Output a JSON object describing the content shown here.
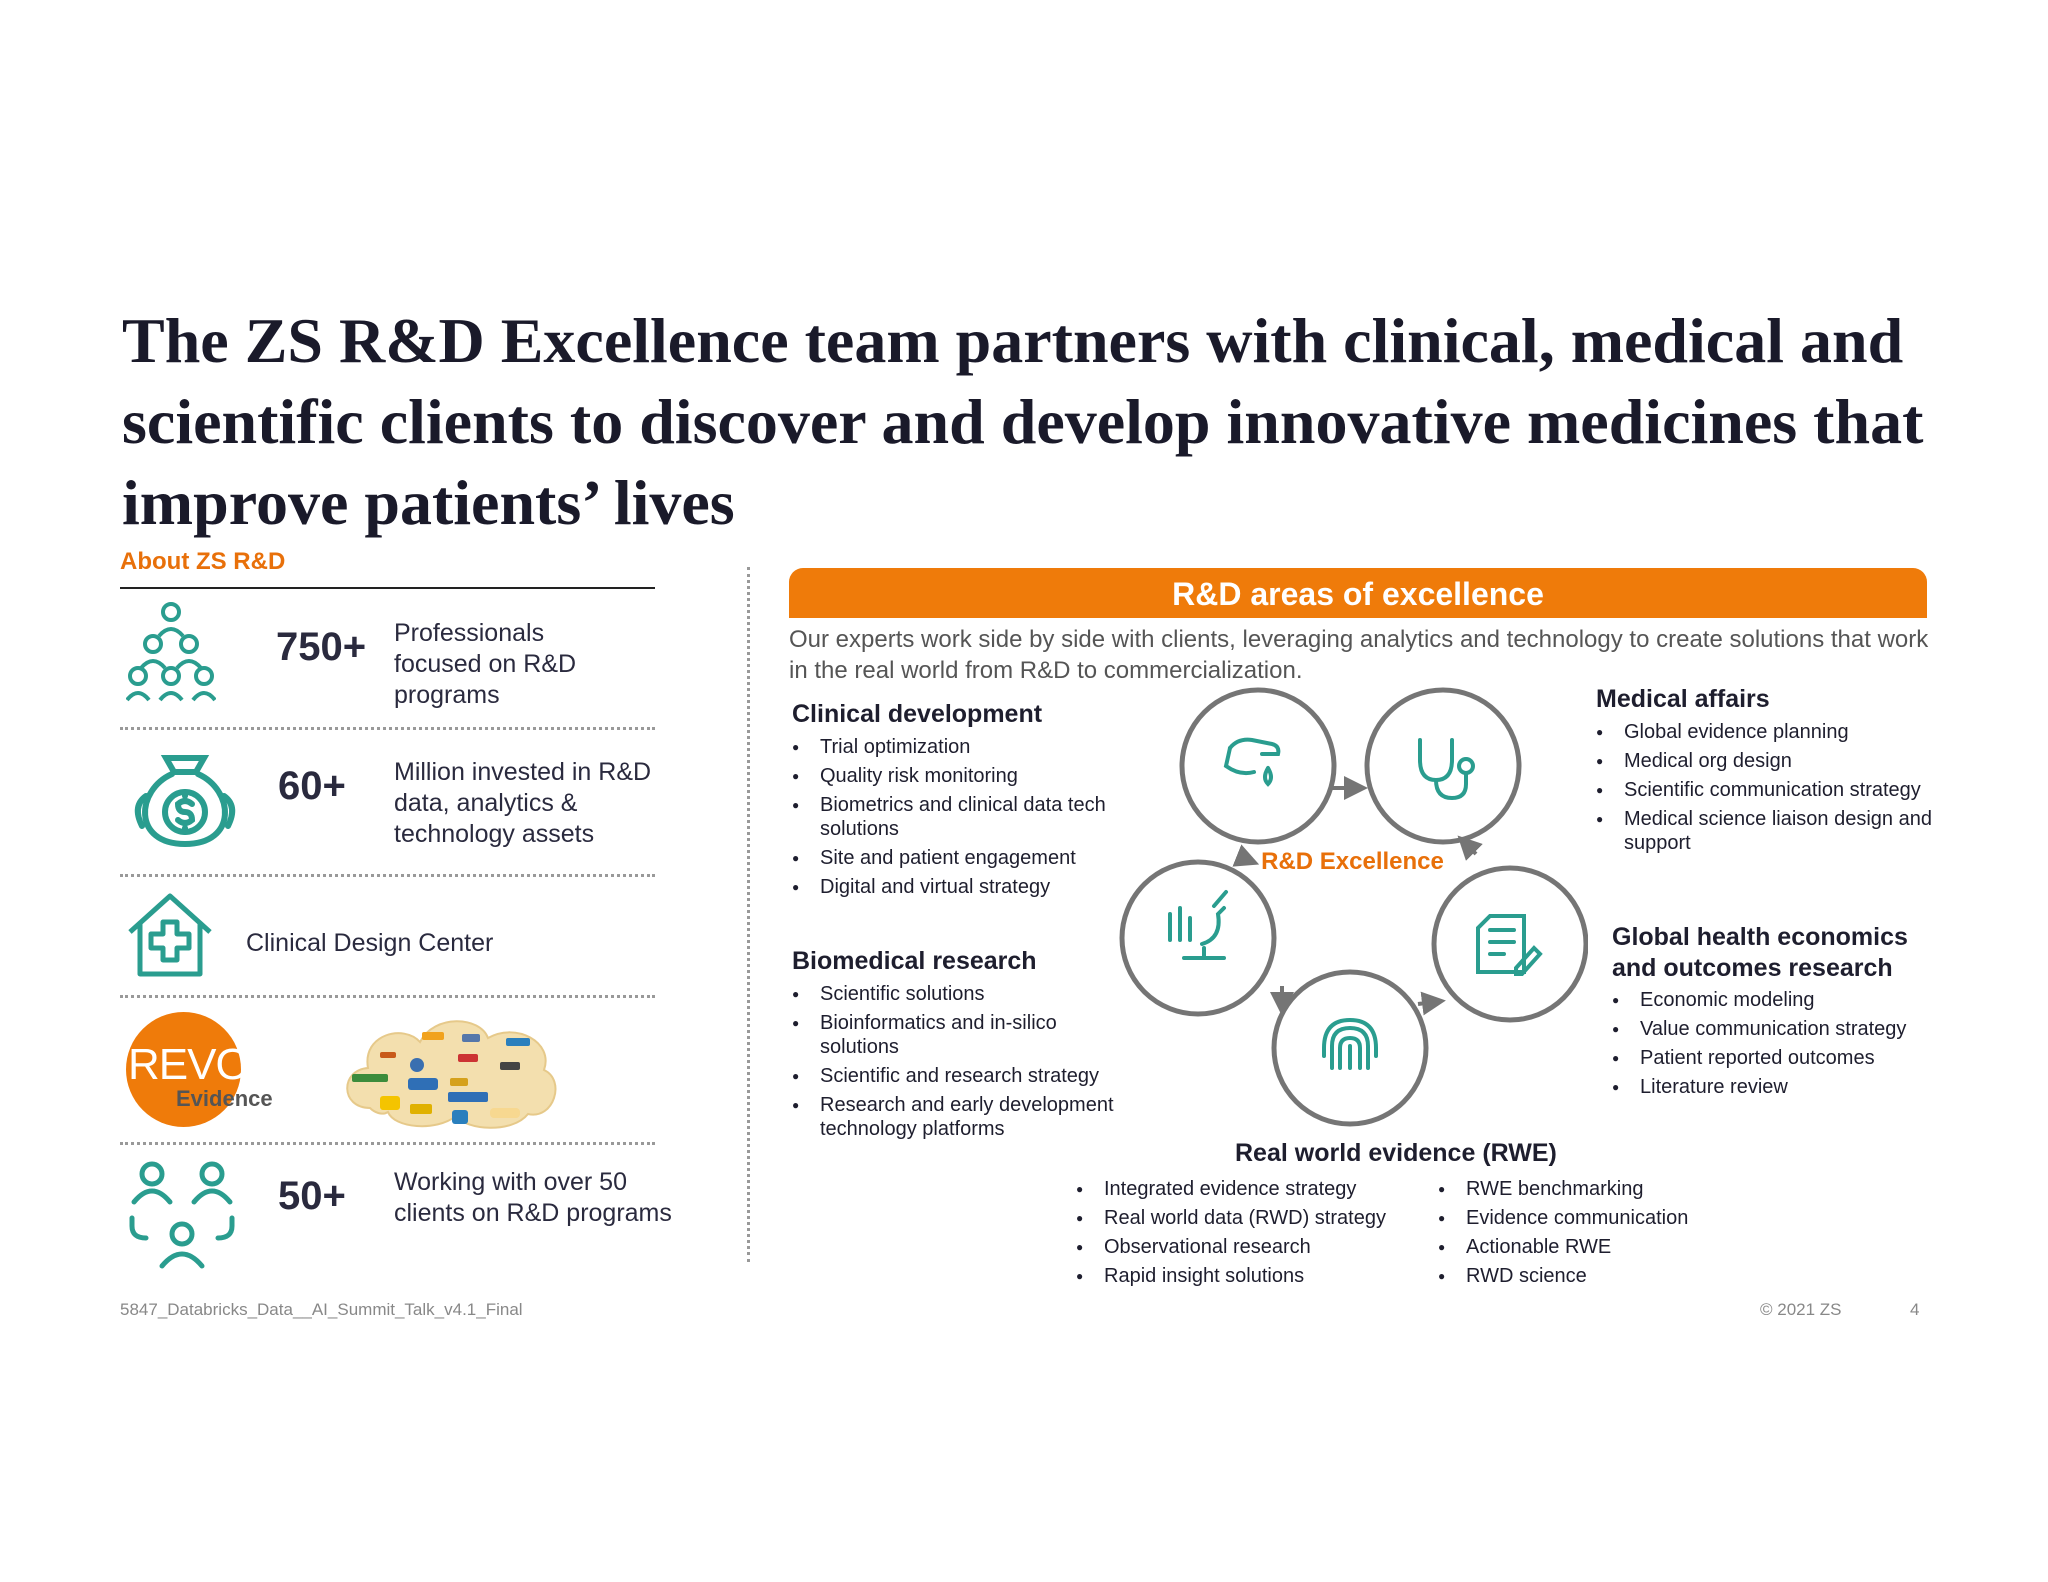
{
  "title": "The ZS R&D Excellence team partners with clinical, medical and scientific clients to discover and develop innovative medicines that improve patients’ lives",
  "about": {
    "heading": "About ZS R&D",
    "stats": [
      {
        "number": "750+",
        "text": "Professionals focused on R&D programs",
        "icon": "people-pyramid-icon"
      },
      {
        "number": "60+",
        "text": "Million invested in R&D data, analytics & technology assets",
        "icon": "money-bag-icon"
      },
      {
        "number": "",
        "text": "Clinical Design Center",
        "icon": "house-medical-icon"
      },
      {
        "number": "50+",
        "text": "Working with over 50 clients on R&D programs",
        "icon": "people-group-icon"
      }
    ],
    "revo": {
      "main": "REVO",
      "sub": "Evidence"
    }
  },
  "excellence": {
    "banner": "R&D areas of excellence",
    "intro": "Our experts work side by side with clients, leveraging analytics and technology to create solutions that work in the real world from R&D to commercialization.",
    "center_label": "R&D Excellence",
    "clinical": {
      "heading": "Clinical development",
      "items": [
        "Trial optimization",
        "Quality risk monitoring",
        "Biometrics and clinical data tech solutions",
        "Site and patient engagement",
        "Digital and virtual strategy"
      ]
    },
    "biomedical": {
      "heading": "Biomedical research",
      "items": [
        "Scientific solutions",
        "Bioinformatics and in-silico solutions",
        "Scientific and research strategy",
        "Research and early development technology platforms"
      ]
    },
    "medical": {
      "heading": "Medical affairs",
      "items": [
        "Global evidence planning",
        "Medical org design",
        "Scientific communication strategy",
        "Medical science liaison design and support"
      ]
    },
    "heor": {
      "heading": "Global health economics and outcomes research",
      "items": [
        "Economic modeling",
        "Value communication strategy",
        "Patient reported outcomes",
        "Literature review"
      ]
    },
    "rwe": {
      "heading": "Real world evidence (RWE)",
      "items_left": [
        "Integrated evidence strategy",
        "Real world data (RWD) strategy",
        "Observational research",
        "Rapid insight solutions"
      ],
      "items_right": [
        "RWE benchmarking",
        "Evidence communication",
        "Actionable RWE",
        "RWD science"
      ]
    }
  },
  "footer": {
    "left": "5847_Databricks_Data__AI_Summit_Talk_v4.1_Final",
    "right": "© 2021 ZS",
    "page": "4"
  },
  "colors": {
    "accent": "#ef7b0a",
    "teal": "#2a9d8f",
    "text": "#1e1e2e",
    "ring": "#757575"
  }
}
